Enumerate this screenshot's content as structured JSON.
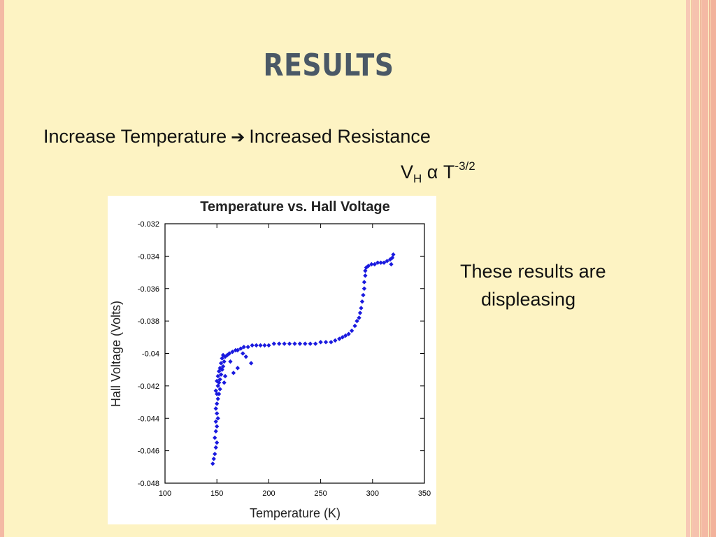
{
  "slide": {
    "title": "RESULTS",
    "bullet_left": "Increase Temperature",
    "bullet_right": "Increased Resistance",
    "formula_v": "V",
    "formula_sub": "H",
    "formula_mid": " α T",
    "formula_sup": "-3/2",
    "comment_line1": "These results are",
    "comment_line2": "displeasing"
  },
  "colors": {
    "background": "#fdf3c3",
    "title": "#4a5866",
    "points": "#1a1adf"
  },
  "icons": {
    "arrow": "right-arrow-icon"
  },
  "chart_data": {
    "type": "scatter",
    "title": "Temperature vs. Hall Voltage",
    "xlabel": "Temperature (K)",
    "ylabel": "Hall Voltage (Volts)",
    "xlim": [
      100,
      350
    ],
    "ylim": [
      -0.048,
      -0.032
    ],
    "xticks": [
      100,
      150,
      200,
      250,
      300,
      350
    ],
    "yticks": [
      -0.032,
      -0.034,
      -0.036,
      -0.038,
      -0.04,
      -0.042,
      -0.044,
      -0.046,
      -0.048
    ],
    "xtick_labels": [
      "100",
      "150",
      "200",
      "250",
      "300",
      "350"
    ],
    "ytick_labels": [
      "-0.032",
      "-0.034",
      "-0.036",
      "-0.038",
      "-0.04",
      "-0.042",
      "-0.044",
      "-0.046",
      "-0.048"
    ],
    "grid": false,
    "marker": "diamond",
    "series": [
      {
        "points": [
          [
            146,
            -0.0468
          ],
          [
            147,
            -0.0465
          ],
          [
            148,
            -0.0462
          ],
          [
            149,
            -0.0458
          ],
          [
            150,
            -0.0455
          ],
          [
            148,
            -0.0452
          ],
          [
            149,
            -0.0448
          ],
          [
            150,
            -0.0445
          ],
          [
            149,
            -0.0442
          ],
          [
            151,
            -0.044
          ],
          [
            150,
            -0.0437
          ],
          [
            149,
            -0.0434
          ],
          [
            150,
            -0.0431
          ],
          [
            151,
            -0.0428
          ],
          [
            150,
            -0.0425
          ],
          [
            149,
            -0.0423
          ],
          [
            151,
            -0.042
          ],
          [
            152,
            -0.0418
          ],
          [
            150,
            -0.0417
          ],
          [
            153,
            -0.0416
          ],
          [
            151,
            -0.0414
          ],
          [
            154,
            -0.0413
          ],
          [
            152,
            -0.0411
          ],
          [
            155,
            -0.041
          ],
          [
            153,
            -0.0409
          ],
          [
            156,
            -0.0408
          ],
          [
            154,
            -0.0406
          ],
          [
            157,
            -0.0405
          ],
          [
            155,
            -0.0403
          ],
          [
            158,
            -0.0402
          ],
          [
            156,
            -0.0401
          ],
          [
            160,
            -0.0401
          ],
          [
            162,
            -0.04
          ],
          [
            165,
            -0.0399
          ],
          [
            168,
            -0.0398
          ],
          [
            170,
            -0.0398
          ],
          [
            173,
            -0.0397
          ],
          [
            176,
            -0.0396
          ],
          [
            180,
            -0.0396
          ],
          [
            184,
            -0.0395
          ],
          [
            188,
            -0.0395
          ],
          [
            192,
            -0.0395
          ],
          [
            196,
            -0.0395
          ],
          [
            200,
            -0.0395
          ],
          [
            205,
            -0.0394
          ],
          [
            210,
            -0.0394
          ],
          [
            215,
            -0.0394
          ],
          [
            220,
            -0.0394
          ],
          [
            225,
            -0.0394
          ],
          [
            230,
            -0.0394
          ],
          [
            235,
            -0.0394
          ],
          [
            240,
            -0.0394
          ],
          [
            245,
            -0.0394
          ],
          [
            250,
            -0.0393
          ],
          [
            255,
            -0.0393
          ],
          [
            260,
            -0.0393
          ],
          [
            264,
            -0.0392
          ],
          [
            268,
            -0.0391
          ],
          [
            271,
            -0.039
          ],
          [
            274,
            -0.0389
          ],
          [
            277,
            -0.0388
          ],
          [
            280,
            -0.0386
          ],
          [
            283,
            -0.0383
          ],
          [
            285,
            -0.038
          ],
          [
            287,
            -0.0378
          ],
          [
            288,
            -0.0375
          ],
          [
            289,
            -0.0372
          ],
          [
            290,
            -0.0368
          ],
          [
            291,
            -0.0364
          ],
          [
            292,
            -0.036
          ],
          [
            292,
            -0.0356
          ],
          [
            293,
            -0.0352
          ],
          [
            293,
            -0.0349
          ],
          [
            294,
            -0.0347
          ],
          [
            296,
            -0.0346
          ],
          [
            299,
            -0.0345
          ],
          [
            302,
            -0.0345
          ],
          [
            305,
            -0.0344
          ],
          [
            308,
            -0.0344
          ],
          [
            311,
            -0.0344
          ],
          [
            314,
            -0.0343
          ],
          [
            317,
            -0.0342
          ],
          [
            319,
            -0.0341
          ],
          [
            320,
            -0.0339
          ],
          [
            318,
            -0.0345
          ],
          [
            163,
            -0.0405
          ],
          [
            170,
            -0.0409
          ],
          [
            178,
            -0.0402
          ],
          [
            183,
            -0.0406
          ],
          [
            166,
            -0.0412
          ],
          [
            175,
            -0.04
          ],
          [
            158,
            -0.0414
          ],
          [
            157,
            -0.0418
          ],
          [
            152,
            -0.0425
          ],
          [
            153,
            -0.0422
          ]
        ]
      }
    ]
  }
}
